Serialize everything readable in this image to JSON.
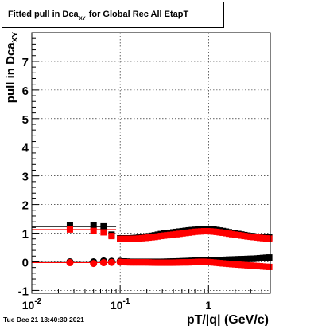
{
  "title": {
    "prefix": "Fitted pull in Dca",
    "subscript": "XY",
    "suffix": "for Global Rec All EtapT"
  },
  "timestamp": "Tue Dec 21 13:40:30 2021",
  "chart_data": {
    "type": "scatter",
    "title": "Fitted pull in Dca_XY for Global Rec All EtapT",
    "xlabel": "pT/|q| (GeV/c)",
    "ylabel": "pull in Dca_XY",
    "ylabel_main": "pull in Dca",
    "ylabel_sub": "XY",
    "xscale": "log",
    "xlim": [
      0.01,
      5.0
    ],
    "ylim": [
      -1.1,
      8.0
    ],
    "grid": true,
    "x_ticks": [
      {
        "value": 0.01,
        "label": "10",
        "exp": "-2"
      },
      {
        "value": 0.1,
        "label": "10",
        "exp": "-1"
      },
      {
        "value": 1,
        "label": "1",
        "exp": ""
      }
    ],
    "y_ticks": [
      -1,
      0,
      1,
      2,
      3,
      4,
      5,
      6,
      7
    ],
    "colors": {
      "black_series": "#000000",
      "red_series": "#ff0000",
      "red_curve": "#ff0000"
    },
    "series": [
      {
        "color": "black",
        "role": "width",
        "x": [
          0.027,
          0.05,
          0.065,
          0.08,
          0.1,
          0.13,
          0.16,
          0.2,
          0.25,
          0.3,
          0.4,
          0.5,
          0.6,
          0.7,
          0.8,
          0.9,
          1.0,
          1.2,
          1.5,
          1.8,
          2.2,
          2.7,
          3.3,
          4.0,
          4.8
        ],
        "y": [
          1.28,
          1.27,
          1.24,
          0.95,
          0.82,
          0.82,
          0.84,
          0.88,
          0.93,
          0.98,
          1.03,
          1.07,
          1.1,
          1.12,
          1.14,
          1.15,
          1.15,
          1.12,
          1.07,
          1.02,
          0.97,
          0.92,
          0.88,
          0.86,
          0.85
        ]
      },
      {
        "color": "red",
        "role": "width",
        "x": [
          0.027,
          0.05,
          0.065,
          0.08,
          0.1,
          0.13,
          0.16,
          0.2,
          0.25,
          0.3,
          0.4,
          0.5,
          0.6,
          0.7,
          0.8,
          0.9,
          1.0,
          1.2,
          1.5,
          1.8,
          2.2,
          2.7,
          3.3,
          4.0,
          4.8
        ],
        "y": [
          1.13,
          1.08,
          1.03,
          0.9,
          0.8,
          0.8,
          0.81,
          0.84,
          0.87,
          0.91,
          0.95,
          0.99,
          1.02,
          1.05,
          1.06,
          1.07,
          1.07,
          1.05,
          1.01,
          0.97,
          0.93,
          0.89,
          0.86,
          0.83,
          0.81
        ]
      },
      {
        "color": "black",
        "role": "mean",
        "x": [
          0.027,
          0.05,
          0.065,
          0.08,
          0.1,
          0.13,
          0.16,
          0.2,
          0.25,
          0.3,
          0.4,
          0.5,
          0.6,
          0.7,
          0.8,
          0.9,
          1.0,
          1.2,
          1.5,
          1.8,
          2.2,
          2.7,
          3.3,
          4.0,
          4.8
        ],
        "y": [
          0.0,
          0.0,
          0.03,
          0.02,
          0.02,
          0.0,
          0.0,
          0.0,
          0.0,
          0.0,
          0.01,
          0.02,
          0.03,
          0.04,
          0.05,
          0.05,
          0.06,
          0.06,
          0.07,
          0.08,
          0.09,
          0.1,
          0.11,
          0.13,
          0.15
        ]
      },
      {
        "color": "red",
        "role": "mean",
        "x": [
          0.027,
          0.05,
          0.065,
          0.08,
          0.1,
          0.13,
          0.16,
          0.2,
          0.25,
          0.3,
          0.4,
          0.5,
          0.6,
          0.7,
          0.8,
          0.9,
          1.0,
          1.2,
          1.5,
          1.8,
          2.2,
          2.7,
          3.3,
          4.0,
          4.8
        ],
        "y": [
          -0.03,
          -0.06,
          -0.03,
          -0.02,
          -0.01,
          -0.02,
          -0.02,
          -0.02,
          -0.03,
          -0.03,
          -0.03,
          -0.02,
          -0.02,
          -0.01,
          0.0,
          0.0,
          -0.01,
          -0.03,
          -0.06,
          -0.08,
          -0.1,
          -0.12,
          -0.14,
          -0.16,
          -0.18
        ]
      }
    ],
    "reference_curves": [
      {
        "color": "black",
        "role": "width-fit",
        "x_range": [
          0.01,
          0.09
        ],
        "y": 1.23
      },
      {
        "color": "red",
        "role": "width-fit",
        "x_range": [
          0.01,
          0.09
        ],
        "y": 1.13
      },
      {
        "color": "black",
        "role": "mean-fit",
        "x_range": [
          0.01,
          0.09
        ],
        "y": 0.02
      },
      {
        "color": "red",
        "role": "mean-fit",
        "x_range": [
          0.01,
          0.09
        ],
        "y": -0.03
      }
    ]
  }
}
